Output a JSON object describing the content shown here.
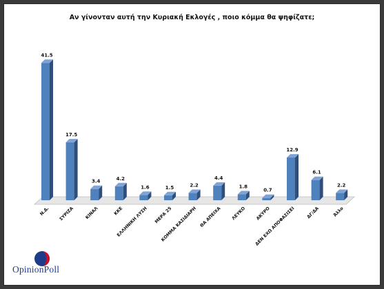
{
  "chart_data": {
    "type": "bar",
    "title": "Αν γίνονταν αυτή την Κυριακή Εκλογές , ποιο κόμμα θα ψηφίζατε;",
    "categories": [
      "Ν.Δ.",
      "ΣΥΡΙΖΑ",
      "ΚΙΝΑΛ",
      "ΚΚΕ",
      "ΕΛΛΗΝΙΚΗ ΛΥΣΗ",
      "ΜΕΡΑ 25",
      "ΚΟΜΜΑ ΚΑΣΙΔΙΑΡΗ",
      "ΘΑ ΑΠΕΙΧΑ",
      "ΛΕΥΚΟ",
      "ΑΚΥΡΟ",
      "ΔΕΝ ΕΧΩ ΑΠΟΦΑΣΙΣΕΙ",
      "ΔΓ/ΔΑ",
      "Άλλο"
    ],
    "values": [
      41.5,
      17.5,
      3.4,
      4.2,
      1.6,
      1.5,
      2.2,
      4.4,
      1.8,
      0.7,
      12.9,
      6.1,
      2.2
    ],
    "data_labels": [
      "41.5",
      "17.5",
      "3.4",
      "4.2",
      "1.6",
      "1.5",
      "2.2",
      "4.4",
      "1.8",
      "0.7",
      "12.9",
      "6.1",
      "2.2"
    ],
    "ylim": [
      0,
      42
    ],
    "grid": false,
    "legend": "none",
    "colors": {
      "bar_front": "#4f81bd",
      "bar_side": "#2f4f7a",
      "bar_top": "#7fa3d6",
      "floor": "#e6e6e6"
    }
  },
  "logo": {
    "text_part1": "Opinion",
    "text_part2": "Poll",
    "colors": {
      "circle_blue": "#1f3c88",
      "circle_red": "#c8102e",
      "text": "#1d3a8c"
    }
  }
}
